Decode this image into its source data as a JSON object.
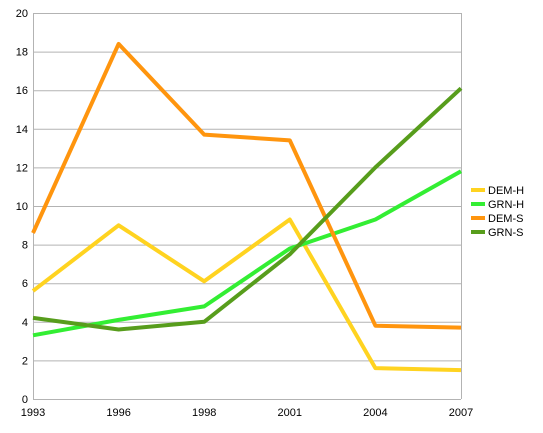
{
  "chart_data": {
    "type": "line",
    "title": "",
    "xlabel": "",
    "ylabel": "",
    "categories": [
      "1993",
      "1996",
      "1998",
      "2001",
      "2004",
      "2007"
    ],
    "ylim": [
      0,
      20
    ],
    "yticks": [
      0,
      2,
      4,
      6,
      8,
      10,
      12,
      14,
      16,
      18,
      20
    ],
    "grid": true,
    "legend_position": "right",
    "series": [
      {
        "name": "DEM-H",
        "color": "#ffd320",
        "values": [
          5.6,
          9.0,
          6.1,
          9.3,
          1.6,
          1.5
        ]
      },
      {
        "name": "GRN-H",
        "color": "#33ee33",
        "values": [
          3.3,
          4.1,
          4.8,
          7.8,
          9.3,
          11.8
        ]
      },
      {
        "name": "DEM-S",
        "color": "#ff950e",
        "values": [
          8.6,
          18.4,
          13.7,
          13.4,
          3.8,
          3.7
        ]
      },
      {
        "name": "GRN-S",
        "color": "#579d1c",
        "values": [
          4.2,
          3.6,
          4.0,
          7.5,
          12.0,
          16.1
        ]
      }
    ]
  }
}
